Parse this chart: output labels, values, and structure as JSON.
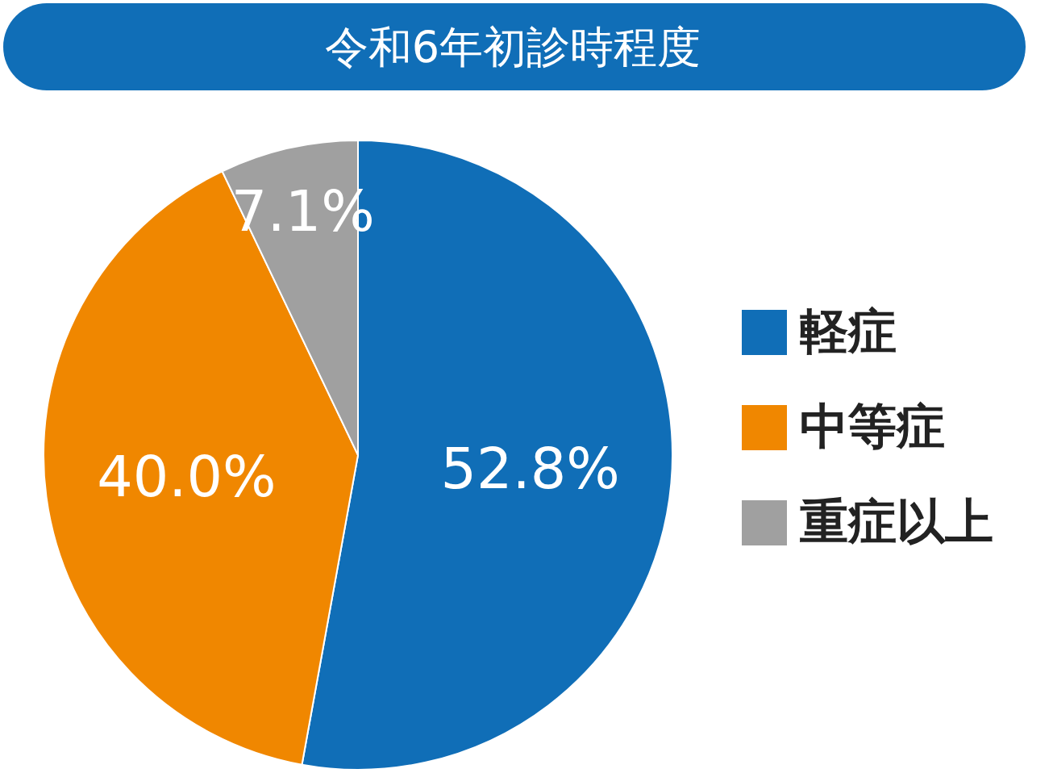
{
  "chart_data": {
    "type": "pie",
    "title": "令和6年初診時程度",
    "categories": [
      "軽症",
      "中等症",
      "重症以上"
    ],
    "values": [
      52.8,
      40.0,
      7.1
    ],
    "colors": [
      "#106eb7",
      "#f08700",
      "#a0a0a0"
    ],
    "value_labels": [
      "52.8%",
      "40.0%",
      "7.1%"
    ],
    "legend": "right"
  }
}
